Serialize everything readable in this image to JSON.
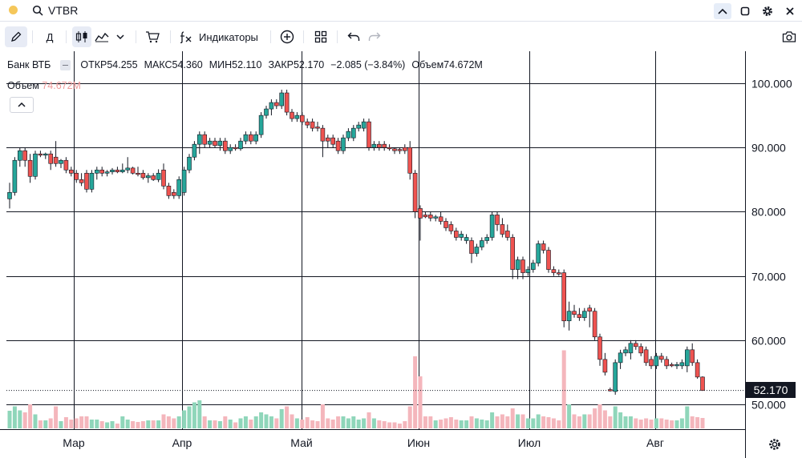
{
  "window": {
    "symbol": "VTBR"
  },
  "toolbar": {
    "timeframe": "Д",
    "indicators_label": "Индикаторы"
  },
  "legend": {
    "name": "Банк ВТБ",
    "open_label": "ОТКР",
    "open": "54.255",
    "high_label": "МАКС",
    "high": "54.360",
    "low_label": "МИН",
    "low": "52.110",
    "close_label": "ЗАКР",
    "close": "52.170",
    "change": "−2.085 (−3.84%)",
    "volume_label": "Объем",
    "volume": "74.672M"
  },
  "volume_legend": {
    "label": "Объем",
    "value": "74.672M"
  },
  "price_label": "52.170",
  "colors": {
    "up": "#26a69a",
    "down": "#ef5350",
    "vol_up": "#8fd6ba",
    "vol_down": "#f4b6bc",
    "grid": "#131722",
    "price_bg": "#131722"
  },
  "icons": [
    "search-icon",
    "collapse-up-icon",
    "square-icon",
    "gear-icon",
    "close-icon",
    "pencil-icon",
    "candles-icon",
    "area-chart-icon",
    "chevron-down-icon",
    "cart-icon",
    "fx-icon",
    "plus-circle-icon",
    "grid-icon",
    "undo-icon",
    "redo-icon",
    "camera-icon",
    "chevron-up-icon",
    "settings-icon"
  ],
  "chart_data": {
    "type": "candlestick",
    "series": [
      {
        "name": "Банк ВТБ"
      },
      {
        "name": "Объем"
      }
    ],
    "x_ticks": [
      "Мар",
      "Апр",
      "Май",
      "Июн",
      "Июл",
      "Авг"
    ],
    "y_ticks": [
      "100.000",
      "90.000",
      "80.000",
      "70.000",
      "60.000",
      "50.000"
    ],
    "ylim": [
      47.5,
      104.5
    ],
    "grid": true,
    "points": [
      {
        "c": "up",
        "o": 82,
        "h": 84.5,
        "l": 80.5,
        "cl": 83,
        "v": 0.44
      },
      {
        "c": "up",
        "o": 83,
        "h": 88.5,
        "l": 82.5,
        "cl": 88,
        "v": 0.55
      },
      {
        "c": "up",
        "o": 88,
        "h": 90,
        "l": 87,
        "cl": 89.5,
        "v": 0.45
      },
      {
        "c": "down",
        "o": 89.5,
        "h": 90,
        "l": 87,
        "cl": 88,
        "v": 0.4
      },
      {
        "c": "down",
        "o": 88,
        "h": 89,
        "l": 84.5,
        "cl": 85.5,
        "v": 0.6
      },
      {
        "c": "up",
        "o": 85.5,
        "h": 89.5,
        "l": 85,
        "cl": 89,
        "v": 0.35
      },
      {
        "c": "down",
        "o": 89,
        "h": 89.5,
        "l": 88.5,
        "cl": 88.8,
        "v": 0.2
      },
      {
        "c": "up",
        "o": 88.8,
        "h": 89.2,
        "l": 88.2,
        "cl": 89,
        "v": 0.2
      },
      {
        "c": "down",
        "o": 89,
        "h": 89.5,
        "l": 86.5,
        "cl": 87.5,
        "v": 0.25
      },
      {
        "c": "down",
        "o": 88.5,
        "h": 91,
        "l": 87,
        "cl": 87.5,
        "v": 0.55
      },
      {
        "c": "up",
        "o": 87.5,
        "h": 88.2,
        "l": 86.8,
        "cl": 88,
        "v": 0.18
      },
      {
        "c": "down",
        "o": 88,
        "h": 88.5,
        "l": 86,
        "cl": 86.5,
        "v": 0.28
      },
      {
        "c": "down",
        "o": 86.5,
        "h": 87,
        "l": 85.5,
        "cl": 86,
        "v": 0.22
      },
      {
        "c": "down",
        "o": 86,
        "h": 86.5,
        "l": 84.5,
        "cl": 85,
        "v": 0.25
      },
      {
        "c": "down",
        "o": 85,
        "h": 86,
        "l": 84,
        "cl": 84.5,
        "v": 0.3
      },
      {
        "c": "down",
        "o": 86,
        "h": 86.5,
        "l": 83,
        "cl": 83.5,
        "v": 0.3
      },
      {
        "c": "up",
        "o": 83.5,
        "h": 86.5,
        "l": 83,
        "cl": 86,
        "v": 0.22
      },
      {
        "c": "up",
        "o": 86,
        "h": 87,
        "l": 85,
        "cl": 86.5,
        "v": 0.22
      },
      {
        "c": "down",
        "o": 86.5,
        "h": 87,
        "l": 85.5,
        "cl": 86,
        "v": 0.18
      },
      {
        "c": "up",
        "o": 86,
        "h": 86.5,
        "l": 85.5,
        "cl": 86.2,
        "v": 0.15
      },
      {
        "c": "up",
        "o": 86.2,
        "h": 86.8,
        "l": 85.8,
        "cl": 86.5,
        "v": 0.18
      },
      {
        "c": "down",
        "o": 86.5,
        "h": 87,
        "l": 86,
        "cl": 86.2,
        "v": 0.12
      },
      {
        "c": "up",
        "o": 86.2,
        "h": 87.5,
        "l": 86,
        "cl": 86.5,
        "v": 0.3
      },
      {
        "c": "up",
        "o": 86.5,
        "h": 88.5,
        "l": 86,
        "cl": 86.8,
        "v": 0.22
      },
      {
        "c": "down",
        "o": 86.8,
        "h": 87,
        "l": 85.8,
        "cl": 86,
        "v": 0.18
      },
      {
        "c": "down",
        "o": 86,
        "h": 87,
        "l": 85.5,
        "cl": 86,
        "v": 0.16
      },
      {
        "c": "down",
        "o": 86,
        "h": 86.5,
        "l": 85,
        "cl": 85.3,
        "v": 0.18
      },
      {
        "c": "up",
        "o": 85.3,
        "h": 86,
        "l": 84.5,
        "cl": 85.6,
        "v": 0.2
      },
      {
        "c": "down",
        "o": 85.6,
        "h": 86,
        "l": 84.8,
        "cl": 85,
        "v": 0.2
      },
      {
        "c": "up",
        "o": 85,
        "h": 86.6,
        "l": 84.6,
        "cl": 86,
        "v": 0.2
      },
      {
        "c": "down",
        "o": 86.5,
        "h": 87.5,
        "l": 83.5,
        "cl": 84,
        "v": 0.35
      },
      {
        "c": "down",
        "o": 84,
        "h": 84.5,
        "l": 82,
        "cl": 82.5,
        "v": 0.3
      },
      {
        "c": "down",
        "o": 83,
        "h": 83.5,
        "l": 82,
        "cl": 82.5,
        "v": 0.25
      },
      {
        "c": "up",
        "o": 82.5,
        "h": 85.5,
        "l": 82,
        "cl": 85,
        "v": 0.3
      },
      {
        "c": "up",
        "o": 83,
        "h": 87,
        "l": 82.5,
        "cl": 86.5,
        "v": 0.45
      },
      {
        "c": "up",
        "o": 86.5,
        "h": 89,
        "l": 86,
        "cl": 88.5,
        "v": 0.55
      },
      {
        "c": "up",
        "o": 88.5,
        "h": 91,
        "l": 88,
        "cl": 90.5,
        "v": 0.65
      },
      {
        "c": "up",
        "o": 90.5,
        "h": 92.5,
        "l": 89,
        "cl": 92,
        "v": 0.7
      },
      {
        "c": "down",
        "o": 92,
        "h": 92.5,
        "l": 90,
        "cl": 90.5,
        "v": 0.3
      },
      {
        "c": "up",
        "o": 90.5,
        "h": 91.5,
        "l": 90,
        "cl": 91,
        "v": 0.2
      },
      {
        "c": "down",
        "o": 91,
        "h": 91.5,
        "l": 90,
        "cl": 90.3,
        "v": 0.2
      },
      {
        "c": "up",
        "o": 90.3,
        "h": 91.5,
        "l": 89.5,
        "cl": 91,
        "v": 0.18
      },
      {
        "c": "down",
        "o": 91,
        "h": 91.5,
        "l": 89,
        "cl": 89.5,
        "v": 0.3
      },
      {
        "c": "up",
        "o": 89.5,
        "h": 90.5,
        "l": 89,
        "cl": 90,
        "v": 0.22
      },
      {
        "c": "down",
        "o": 90,
        "h": 90.5,
        "l": 89.5,
        "cl": 89.8,
        "v": 0.15
      },
      {
        "c": "up",
        "o": 89.8,
        "h": 91.5,
        "l": 89.5,
        "cl": 91,
        "v": 0.25
      },
      {
        "c": "up",
        "o": 91,
        "h": 92.5,
        "l": 90.5,
        "cl": 92,
        "v": 0.3
      },
      {
        "c": "down",
        "o": 92,
        "h": 92.5,
        "l": 90.5,
        "cl": 91,
        "v": 0.22
      },
      {
        "c": "up",
        "o": 91,
        "h": 92.5,
        "l": 90.5,
        "cl": 92,
        "v": 0.3
      },
      {
        "c": "up",
        "o": 92,
        "h": 95.5,
        "l": 91.5,
        "cl": 95,
        "v": 0.4
      },
      {
        "c": "up",
        "o": 95,
        "h": 96.5,
        "l": 94.5,
        "cl": 96,
        "v": 0.35
      },
      {
        "c": "up",
        "o": 96,
        "h": 97.5,
        "l": 95,
        "cl": 97,
        "v": 0.3
      },
      {
        "c": "down",
        "o": 97,
        "h": 97.5,
        "l": 96,
        "cl": 96.5,
        "v": 0.25
      },
      {
        "c": "up",
        "o": 96.5,
        "h": 99,
        "l": 96,
        "cl": 98.5,
        "v": 0.48
      },
      {
        "c": "down",
        "o": 98.5,
        "h": 99,
        "l": 95,
        "cl": 95.5,
        "v": 0.55
      },
      {
        "c": "down",
        "o": 95.5,
        "h": 96,
        "l": 94,
        "cl": 94.5,
        "v": 0.35
      },
      {
        "c": "up",
        "o": 94.5,
        "h": 95.5,
        "l": 94,
        "cl": 95,
        "v": 0.25
      },
      {
        "c": "down",
        "o": 95,
        "h": 95.5,
        "l": 93.5,
        "cl": 94,
        "v": 0.22
      },
      {
        "c": "down",
        "o": 94,
        "h": 94.5,
        "l": 93,
        "cl": 93.5,
        "v": 0.28
      },
      {
        "c": "down",
        "o": 94,
        "h": 94.5,
        "l": 92.5,
        "cl": 93,
        "v": 0.2
      },
      {
        "c": "down",
        "o": 93,
        "h": 94,
        "l": 92.5,
        "cl": 93.2,
        "v": 0.18
      },
      {
        "c": "down",
        "o": 93,
        "h": 93.5,
        "l": 88.5,
        "cl": 91,
        "v": 0.6
      },
      {
        "c": "down",
        "o": 91,
        "h": 92,
        "l": 90,
        "cl": 91.5,
        "v": 0.25
      },
      {
        "c": "down",
        "o": 91.5,
        "h": 92,
        "l": 90,
        "cl": 90.5,
        "v": 0.22
      },
      {
        "c": "down",
        "o": 91,
        "h": 91.5,
        "l": 89,
        "cl": 89.5,
        "v": 0.3
      },
      {
        "c": "up",
        "o": 89.5,
        "h": 92,
        "l": 89,
        "cl": 91.5,
        "v": 0.3
      },
      {
        "c": "up",
        "o": 91.5,
        "h": 93,
        "l": 91,
        "cl": 92.5,
        "v": 0.25
      },
      {
        "c": "up",
        "o": 91.5,
        "h": 93.5,
        "l": 91,
        "cl": 93,
        "v": 0.3
      },
      {
        "c": "up",
        "o": 93,
        "h": 94,
        "l": 92.5,
        "cl": 93.5,
        "v": 0.22
      },
      {
        "c": "up",
        "o": 93,
        "h": 94.5,
        "l": 92.5,
        "cl": 94,
        "v": 0.25
      },
      {
        "c": "down",
        "o": 94,
        "h": 94.5,
        "l": 89.5,
        "cl": 90,
        "v": 0.4
      },
      {
        "c": "up",
        "o": 90,
        "h": 91,
        "l": 89.5,
        "cl": 90.5,
        "v": 0.25
      },
      {
        "c": "down",
        "o": 90.5,
        "h": 91,
        "l": 89.5,
        "cl": 90,
        "v": 0.2
      },
      {
        "c": "down",
        "o": 90.5,
        "h": 91,
        "l": 89.5,
        "cl": 90,
        "v": 0.18
      },
      {
        "c": "down",
        "o": 90,
        "h": 90.5,
        "l": 89.5,
        "cl": 89.8,
        "v": 0.15
      },
      {
        "c": "down",
        "o": 89.8,
        "h": 90,
        "l": 89,
        "cl": 89.5,
        "v": 0.15
      },
      {
        "c": "down",
        "o": 89.5,
        "h": 90,
        "l": 89,
        "cl": 89.7,
        "v": 0.12
      },
      {
        "c": "down",
        "o": 90,
        "h": 90.5,
        "l": 89,
        "cl": 89.5,
        "v": 0.18
      },
      {
        "c": "down",
        "o": 90,
        "h": 91,
        "l": 85,
        "cl": 86,
        "v": 0.55
      },
      {
        "c": "down",
        "o": 86,
        "h": 86.5,
        "l": 79,
        "cl": 80,
        "v": 1.8
      },
      {
        "c": "down",
        "o": 80.5,
        "h": 81,
        "l": 75.5,
        "cl": 79,
        "v": 1.3
      },
      {
        "c": "down",
        "o": 79.5,
        "h": 80,
        "l": 79,
        "cl": 79.2,
        "v": 0.3
      },
      {
        "c": "down",
        "o": 79.5,
        "h": 80,
        "l": 78.5,
        "cl": 79,
        "v": 0.3
      },
      {
        "c": "up",
        "o": 79,
        "h": 79.5,
        "l": 78.5,
        "cl": 79.2,
        "v": 0.2
      },
      {
        "c": "down",
        "o": 79.2,
        "h": 80,
        "l": 78,
        "cl": 78.5,
        "v": 0.22
      },
      {
        "c": "down",
        "o": 78.5,
        "h": 79,
        "l": 77,
        "cl": 77.5,
        "v": 0.25
      },
      {
        "c": "down",
        "o": 78,
        "h": 78.5,
        "l": 76.5,
        "cl": 77,
        "v": 0.28
      },
      {
        "c": "down",
        "o": 77,
        "h": 77.5,
        "l": 75.5,
        "cl": 76,
        "v": 0.22
      },
      {
        "c": "up",
        "o": 76,
        "h": 77,
        "l": 75.5,
        "cl": 76.5,
        "v": 0.2
      },
      {
        "c": "up",
        "o": 76,
        "h": 76.5,
        "l": 75,
        "cl": 75.5,
        "v": 0.2
      },
      {
        "c": "down",
        "o": 75.5,
        "h": 76,
        "l": 72,
        "cl": 73.5,
        "v": 0.3
      },
      {
        "c": "up",
        "o": 73.5,
        "h": 75,
        "l": 73,
        "cl": 74.5,
        "v": 0.25
      },
      {
        "c": "up",
        "o": 74.5,
        "h": 76,
        "l": 74,
        "cl": 75.5,
        "v": 0.22
      },
      {
        "c": "up",
        "o": 75.5,
        "h": 76.5,
        "l": 75,
        "cl": 76,
        "v": 0.2
      },
      {
        "c": "up",
        "o": 76,
        "h": 80,
        "l": 75.5,
        "cl": 79.5,
        "v": 0.4
      },
      {
        "c": "down",
        "o": 79.5,
        "h": 80,
        "l": 77,
        "cl": 78,
        "v": 0.3
      },
      {
        "c": "down",
        "o": 78,
        "h": 79,
        "l": 76,
        "cl": 76.5,
        "v": 0.35
      },
      {
        "c": "down",
        "o": 77,
        "h": 78,
        "l": 75.5,
        "cl": 76,
        "v": 0.3
      },
      {
        "c": "down",
        "o": 76,
        "h": 76.5,
        "l": 69.5,
        "cl": 71,
        "v": 0.5
      },
      {
        "c": "up",
        "o": 71,
        "h": 73,
        "l": 69.5,
        "cl": 72.5,
        "v": 0.35
      },
      {
        "c": "down",
        "o": 72.5,
        "h": 73,
        "l": 69.5,
        "cl": 70.5,
        "v": 0.35
      },
      {
        "c": "up",
        "o": 70.5,
        "h": 71.5,
        "l": 70,
        "cl": 71,
        "v": 0.25
      },
      {
        "c": "up",
        "o": 71,
        "h": 72.5,
        "l": 70.5,
        "cl": 72,
        "v": 0.25
      },
      {
        "c": "up",
        "o": 72,
        "h": 75.5,
        "l": 71.5,
        "cl": 75,
        "v": 0.35
      },
      {
        "c": "down",
        "o": 75,
        "h": 75.5,
        "l": 73.5,
        "cl": 74,
        "v": 0.3
      },
      {
        "c": "down",
        "o": 74,
        "h": 74.5,
        "l": 70.5,
        "cl": 71,
        "v": 0.28
      },
      {
        "c": "down",
        "o": 71,
        "h": 71.5,
        "l": 70,
        "cl": 70.5,
        "v": 0.25
      },
      {
        "c": "down",
        "o": 70.5,
        "h": 71,
        "l": 70,
        "cl": 70.3,
        "v": 0.2
      },
      {
        "c": "down",
        "o": 70.5,
        "h": 71,
        "l": 62,
        "cl": 63,
        "v": 1.95
      },
      {
        "c": "up",
        "o": 63,
        "h": 66,
        "l": 61.5,
        "cl": 64.5,
        "v": 0.6
      },
      {
        "c": "down",
        "o": 64.5,
        "h": 65.5,
        "l": 63.5,
        "cl": 64,
        "v": 0.35
      },
      {
        "c": "down",
        "o": 64,
        "h": 65,
        "l": 63,
        "cl": 63.5,
        "v": 0.3
      },
      {
        "c": "up",
        "o": 63.5,
        "h": 65,
        "l": 63,
        "cl": 64.5,
        "v": 0.35
      },
      {
        "c": "down",
        "o": 65,
        "h": 65.5,
        "l": 62,
        "cl": 64.5,
        "v": 0.35
      },
      {
        "c": "down",
        "o": 64.5,
        "h": 65,
        "l": 60,
        "cl": 60.5,
        "v": 0.5
      },
      {
        "c": "down",
        "o": 60.5,
        "h": 61,
        "l": 56,
        "cl": 57,
        "v": 0.6
      },
      {
        "c": "down",
        "o": 57,
        "h": 58,
        "l": 54.5,
        "cl": 55,
        "v": 0.45
      },
      {
        "c": "down",
        "o": 52.3,
        "h": 52.6,
        "l": 52,
        "cl": 52.1,
        "v": 0.3
      },
      {
        "c": "up",
        "o": 52,
        "h": 57,
        "l": 51.5,
        "cl": 56.5,
        "v": 0.55
      },
      {
        "c": "up",
        "o": 56.5,
        "h": 58.5,
        "l": 55.5,
        "cl": 58,
        "v": 0.4
      },
      {
        "c": "up",
        "o": 58,
        "h": 59,
        "l": 57.5,
        "cl": 58.5,
        "v": 0.3
      },
      {
        "c": "up",
        "o": 58,
        "h": 60,
        "l": 57,
        "cl": 59.5,
        "v": 0.3
      },
      {
        "c": "down",
        "o": 59.5,
        "h": 60,
        "l": 58.5,
        "cl": 59,
        "v": 0.25
      },
      {
        "c": "down",
        "o": 59,
        "h": 59.5,
        "l": 57.5,
        "cl": 58,
        "v": 0.22
      },
      {
        "c": "down",
        "o": 58.5,
        "h": 59,
        "l": 56,
        "cl": 56.5,
        "v": 0.25
      },
      {
        "c": "down",
        "o": 57,
        "h": 57.5,
        "l": 55.5,
        "cl": 56,
        "v": 0.22
      },
      {
        "c": "up",
        "o": 56,
        "h": 58,
        "l": 55.5,
        "cl": 57.5,
        "v": 0.25
      },
      {
        "c": "down",
        "o": 57.5,
        "h": 58,
        "l": 56.5,
        "cl": 57,
        "v": 0.25
      },
      {
        "c": "down",
        "o": 57,
        "h": 57.5,
        "l": 55.5,
        "cl": 56,
        "v": 0.22
      },
      {
        "c": "down",
        "o": 56.2,
        "h": 56.5,
        "l": 55.8,
        "cl": 56,
        "v": 0.2
      },
      {
        "c": "up",
        "o": 56,
        "h": 56.6,
        "l": 55.5,
        "cl": 56.2,
        "v": 0.2
      },
      {
        "c": "up",
        "o": 56,
        "h": 57,
        "l": 55.5,
        "cl": 56.5,
        "v": 0.25
      },
      {
        "c": "up",
        "o": 56,
        "h": 59,
        "l": 55,
        "cl": 58.5,
        "v": 0.55
      },
      {
        "c": "down",
        "o": 58.5,
        "h": 59.5,
        "l": 56,
        "cl": 56.5,
        "v": 0.3
      },
      {
        "c": "down",
        "o": 56.5,
        "h": 57,
        "l": 54,
        "cl": 54.255,
        "v": 0.28
      },
      {
        "c": "down",
        "o": 54.255,
        "h": 54.36,
        "l": 52.11,
        "cl": 52.17,
        "v": 0.26
      }
    ]
  }
}
